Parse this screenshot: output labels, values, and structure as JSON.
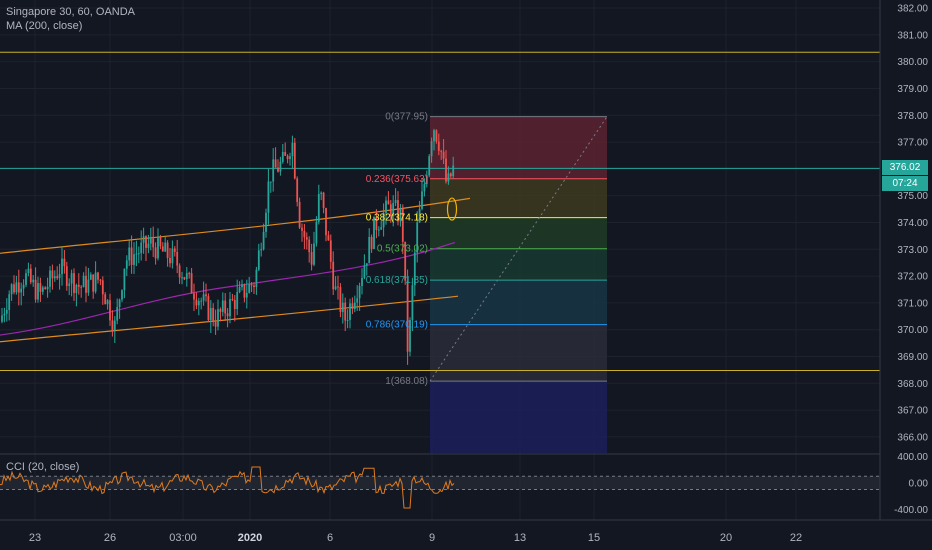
{
  "legend": {
    "symbol": "Singapore 30, 60, OANDA",
    "ma": "MA (200, close)",
    "cci": "CCI (20, close)"
  },
  "price_axis": {
    "ticks": [
      "382.00",
      "381.00",
      "380.00",
      "379.00",
      "378.00",
      "377.00",
      "376.00",
      "375.00",
      "374.00",
      "373.00",
      "372.00",
      "371.00",
      "370.00",
      "369.00",
      "368.00",
      "367.00",
      "366.00"
    ],
    "tick_values": [
      382,
      381,
      380,
      379,
      378,
      377,
      376,
      375,
      374,
      373,
      372,
      371,
      370,
      369,
      368,
      367,
      366
    ],
    "range": [
      365.4,
      382.3
    ],
    "last_price": "376.02",
    "last_price_value": 376.02,
    "countdown": "07:24"
  },
  "cci_axis": {
    "ticks": [
      "400.00",
      "0.00",
      "-400.00"
    ],
    "tick_values": [
      400,
      0,
      -400
    ],
    "range": [
      -560,
      420
    ],
    "bands": [
      100,
      -100
    ]
  },
  "time_axis": {
    "labels": [
      "23",
      "26",
      "03:00",
      "2020",
      "6",
      "9",
      "13",
      "15",
      "20",
      "22"
    ],
    "bold": [
      "2020"
    ]
  },
  "fibonacci": {
    "levels": [
      {
        "ratio": 0,
        "price": 377.95,
        "label": "0(377.95)",
        "color": "#787b86",
        "fill": "#5d2230"
      },
      {
        "ratio": 0.236,
        "price": 375.63,
        "label": "0.236(375.63)",
        "color": "#f7525f",
        "fill": "#3d3a1f"
      },
      {
        "ratio": 0.382,
        "price": 374.18,
        "label": "0.382(374.18)",
        "color": "#ffeb3b",
        "fill": "#1f3b25"
      },
      {
        "ratio": 0.5,
        "price": 373.02,
        "label": "0.5(373.02)",
        "color": "#4caf50",
        "fill": "#173a2f"
      },
      {
        "ratio": 0.618,
        "price": 371.85,
        "label": "0.618(371.85)",
        "color": "#26a69a",
        "fill": "#173545"
      },
      {
        "ratio": 0.786,
        "price": 370.19,
        "label": "0.786(370.19)",
        "color": "#2196f3",
        "fill": "#2a2d38"
      },
      {
        "ratio": 1,
        "price": 368.08,
        "label": "1(368.08)",
        "color": "#787b86",
        "fill": "#1c1f5b"
      }
    ]
  },
  "horizontal_lines": [
    {
      "price": 380.35,
      "color": "#c9b02a"
    },
    {
      "price": 368.48,
      "color": "#c9b02a"
    },
    {
      "price": 376.02,
      "color": "#26a69a"
    }
  ],
  "colors": {
    "up": "#26a69a",
    "down": "#ef5350",
    "ma": "#9c27b0",
    "channel": "#e08a1e",
    "cci": "#e07b1e",
    "background": "#131722"
  }
}
